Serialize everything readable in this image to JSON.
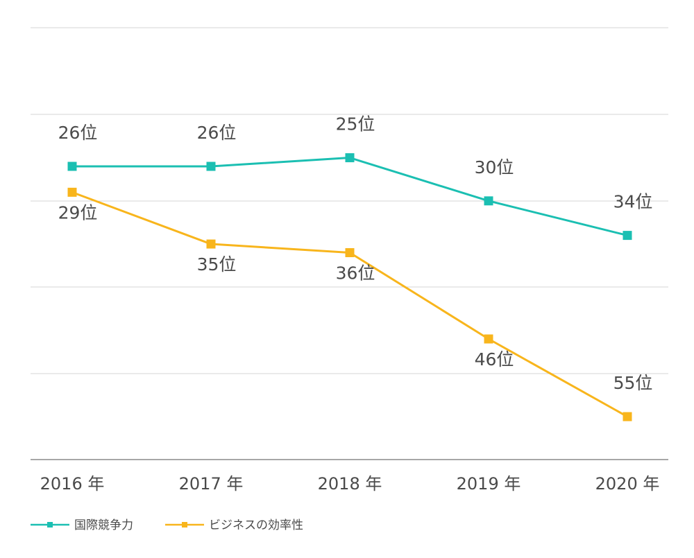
{
  "chart_data": {
    "type": "line",
    "categories": [
      "2016 年",
      "2017 年",
      "2018 年",
      "2019 年",
      "2020 年"
    ],
    "y_inverted": true,
    "ylim": [
      17,
      67
    ],
    "grid": true,
    "legend_position": "bottom-left",
    "series": [
      {
        "name": "国際競争力",
        "values": [
          26,
          26,
          25,
          30,
          34
        ],
        "labels": [
          "26位",
          "26位",
          "25位",
          "30位",
          "34位"
        ],
        "color": "#1bbfb2"
      },
      {
        "name": "ビジネスの効率性",
        "values": [
          29,
          35,
          36,
          46,
          55
        ],
        "labels": [
          "29位",
          "35位",
          "36位",
          "46位",
          "55位"
        ],
        "color": "#f8b51c"
      }
    ]
  }
}
